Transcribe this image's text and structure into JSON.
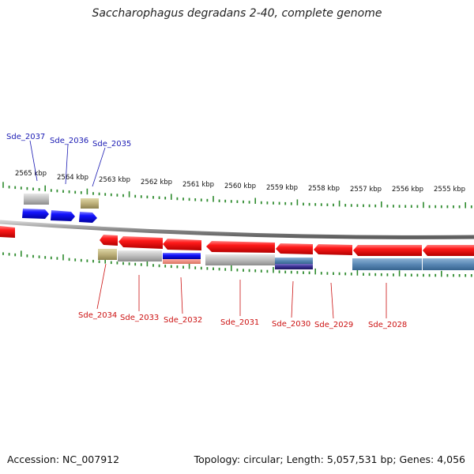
{
  "title": "Saccharophagus degradans 2-40, complete genome",
  "accession": "Accession: NC_007912",
  "summary": "Topology: circular; Length: 5,057,531 bp; Genes: 4,056",
  "colors": {
    "forward": "#1414ff",
    "reverse": "#ff1a1a",
    "forward_label": "#1a1ab3",
    "reverse_label": "#cc1111",
    "ticks": "#2e8b2e"
  },
  "kbp_labels": [
    "2565 kbp",
    "2564 kbp",
    "2563 kbp",
    "2562 kbp",
    "2561 kbp",
    "2560 kbp",
    "2559 kbp",
    "2558 kbp",
    "2557 kbp",
    "2556 kbp",
    "2555 kbp"
  ],
  "forward_genes": [
    "Sde_2037",
    "Sde_2036",
    "Sde_2035"
  ],
  "reverse_genes": [
    "Sde_2034",
    "Sde_2033",
    "Sde_2032",
    "Sde_2031",
    "Sde_2030",
    "Sde_2029",
    "Sde_2028"
  ]
}
